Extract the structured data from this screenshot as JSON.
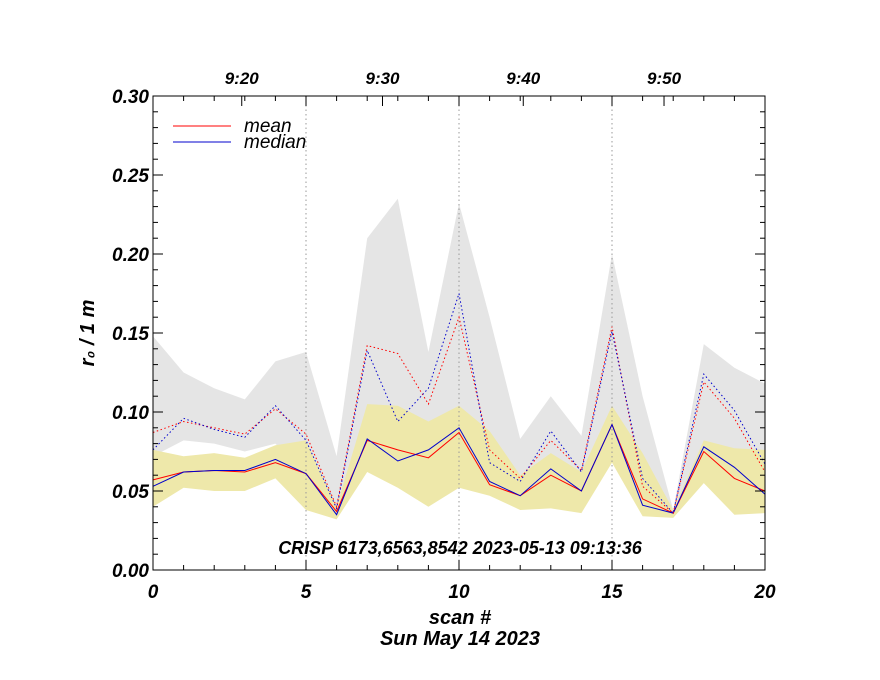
{
  "chart_data": {
    "type": "line",
    "title": "",
    "xlabel": "scan #",
    "subtitle": "Sun May 14 2023",
    "ylabel": "r₀ / 1 m",
    "annotation": "CRISP 6173,6563,8542 2023-05-13 09:13:36",
    "xlim": [
      0,
      20
    ],
    "ylim": [
      0.0,
      0.3
    ],
    "x_ticks": [
      0,
      5,
      10,
      15,
      20
    ],
    "x_tick_labels": [
      "0",
      "5",
      "10",
      "15",
      "20"
    ],
    "y_ticks": [
      0.0,
      0.05,
      0.1,
      0.15,
      0.2,
      0.25,
      0.3
    ],
    "y_tick_labels": [
      "0.00",
      "0.05",
      "0.10",
      "0.15",
      "0.20",
      "0.25",
      "0.30"
    ],
    "top_axis": {
      "label_positions": [
        2.9,
        7.5,
        12.1,
        16.7
      ],
      "labels": [
        "9:20",
        "9:30",
        "9:40",
        "9:50"
      ]
    },
    "vertical_markers": [
      5,
      10,
      15
    ],
    "x": [
      0,
      1,
      2,
      3,
      4,
      5,
      6,
      7,
      8,
      9,
      10,
      11,
      12,
      13,
      14,
      15,
      16,
      17,
      18,
      19,
      20
    ],
    "gray_band": {
      "upper": [
        0.148,
        0.125,
        0.115,
        0.108,
        0.132,
        0.138,
        0.072,
        0.21,
        0.235,
        0.138,
        0.232,
        0.16,
        0.083,
        0.11,
        0.085,
        0.2,
        0.11,
        0.038,
        0.143,
        0.128,
        0.118
      ],
      "lower": [
        0.072,
        0.082,
        0.08,
        0.075,
        0.08,
        0.06,
        0.035,
        0.082,
        0.078,
        0.075,
        0.08,
        0.055,
        0.046,
        0.058,
        0.05,
        0.095,
        0.04,
        0.035,
        0.068,
        0.06,
        0.048
      ]
    },
    "yellow_band": {
      "upper": [
        0.076,
        0.072,
        0.074,
        0.071,
        0.079,
        0.082,
        0.04,
        0.105,
        0.104,
        0.094,
        0.104,
        0.088,
        0.06,
        0.074,
        0.062,
        0.104,
        0.074,
        0.038,
        0.082,
        0.077,
        0.076
      ],
      "lower": [
        0.04,
        0.052,
        0.05,
        0.05,
        0.058,
        0.038,
        0.032,
        0.062,
        0.052,
        0.04,
        0.052,
        0.047,
        0.038,
        0.039,
        0.036,
        0.068,
        0.034,
        0.033,
        0.055,
        0.035,
        0.036
      ]
    },
    "series": [
      {
        "name": "mean",
        "style": "solid",
        "color": "#ff0000",
        "values": [
          0.057,
          0.062,
          0.063,
          0.062,
          0.068,
          0.061,
          0.037,
          0.082,
          0.076,
          0.071,
          0.087,
          0.054,
          0.047,
          0.06,
          0.05,
          0.092,
          0.045,
          0.036,
          0.075,
          0.058,
          0.05
        ]
      },
      {
        "name": "median",
        "style": "solid",
        "color": "#0000cc",
        "values": [
          0.053,
          0.062,
          0.063,
          0.063,
          0.07,
          0.061,
          0.035,
          0.083,
          0.069,
          0.076,
          0.09,
          0.056,
          0.047,
          0.064,
          0.05,
          0.092,
          0.041,
          0.036,
          0.078,
          0.065,
          0.048
        ]
      },
      {
        "name": "mean (upper)",
        "style": "dotted",
        "color": "#ff0000",
        "values": [
          0.087,
          0.094,
          0.09,
          0.086,
          0.102,
          0.086,
          0.04,
          0.142,
          0.137,
          0.105,
          0.16,
          0.076,
          0.058,
          0.082,
          0.063,
          0.154,
          0.053,
          0.036,
          0.119,
          0.096,
          0.062
        ]
      },
      {
        "name": "median (upper)",
        "style": "dotted",
        "color": "#0000cc",
        "values": [
          0.076,
          0.096,
          0.089,
          0.084,
          0.104,
          0.082,
          0.039,
          0.139,
          0.094,
          0.115,
          0.175,
          0.068,
          0.056,
          0.088,
          0.062,
          0.151,
          0.058,
          0.036,
          0.124,
          0.101,
          0.067
        ]
      }
    ],
    "legend": {
      "placement": "top-left",
      "entries": [
        {
          "label": "mean",
          "color": "#ff0000"
        },
        {
          "label": "median",
          "color": "#0000cc"
        }
      ]
    },
    "colors": {
      "gray_band": "#e5e5e5",
      "yellow_band": "#eee8aa",
      "marker": "#999999"
    }
  }
}
